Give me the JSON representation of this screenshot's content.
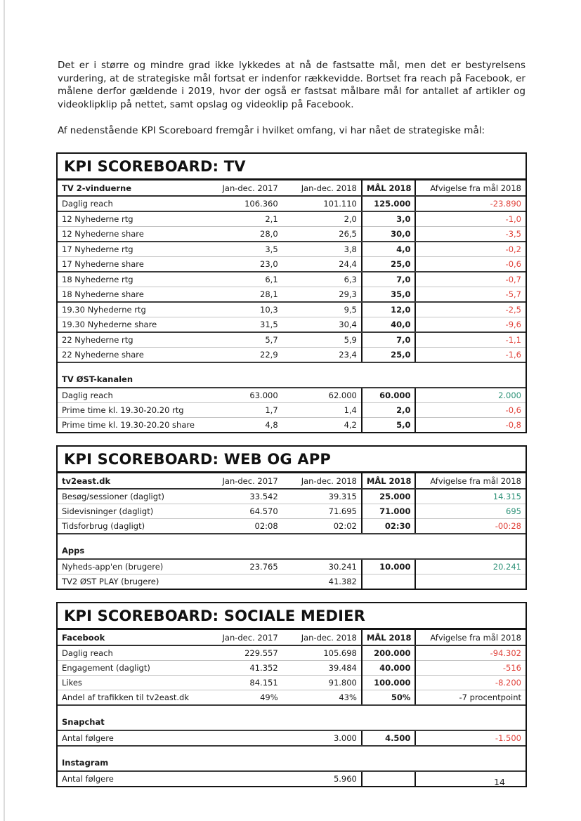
{
  "intro": {
    "paragraph1": "Det er i større og mindre grad ikke lykkedes at nå de fastsatte mål, men det er bestyrelsens vurdering, at de strategiske mål fortsat er indenfor rækkevidde. Bortset fra reach på Facebook, er målene derfor gældende i 2019, hvor der også er fastsat målbare mål for antallet af artikler og videoklipklip på nettet, samt opslag og videoklip på Facebook.",
    "paragraph2": "Af nedenstående KPI Scoreboard fremgår i hvilket omfang, vi har nået de strategiske mål:"
  },
  "columns": {
    "period1": "Jan-dec. 2017",
    "period2": "Jan-dec. 2018",
    "goal": "MÅL 2018",
    "deviation": "Afvigelse fra mål 2018"
  },
  "colors": {
    "negative": "#e0423a",
    "positive": "#2e9278",
    "text": "#1a1a1a",
    "border_dark": "#141414",
    "border_light": "#c3c3c3"
  },
  "tables": [
    {
      "title": "KPI SCOREBOARD: TV",
      "group_label": "TV 2-vinduerne",
      "rows": [
        {
          "type": "data",
          "label": "Daglig reach",
          "v1": "106.360",
          "v2": "101.110",
          "goal": "125.000",
          "dev": "-23.890",
          "dev_tone": "negative",
          "border": "dark"
        },
        {
          "type": "data",
          "label": "12 Nyhederne rtg",
          "v1": "2,1",
          "v2": "2,0",
          "goal": "3,0",
          "dev": "-1,0",
          "dev_tone": "negative",
          "border": "light"
        },
        {
          "type": "data",
          "label": "12 Nyhederne share",
          "v1": "28,0",
          "v2": "26,5",
          "goal": "30,0",
          "dev": "-3,5",
          "dev_tone": "negative",
          "border": "dark"
        },
        {
          "type": "data",
          "label": "17 Nyhederne rtg",
          "v1": "3,5",
          "v2": "3,8",
          "goal": "4,0",
          "dev": "-0,2",
          "dev_tone": "negative",
          "border": "light"
        },
        {
          "type": "data",
          "label": "17 Nyhederne share",
          "v1": "23,0",
          "v2": "24,4",
          "goal": "25,0",
          "dev": "-0,6",
          "dev_tone": "negative",
          "border": "dark"
        },
        {
          "type": "data",
          "label": "18 Nyhederne rtg",
          "v1": "6,1",
          "v2": "6,3",
          "goal": "7,0",
          "dev": "-0,7",
          "dev_tone": "negative",
          "border": "light"
        },
        {
          "type": "data",
          "label": "18 Nyhederne share",
          "v1": "28,1",
          "v2": "29,3",
          "goal": "35,0",
          "dev": "-5,7",
          "dev_tone": "negative",
          "border": "dark"
        },
        {
          "type": "data",
          "label": "19.30 Nyhederne rtg",
          "v1": "10,3",
          "v2": "9,5",
          "goal": "12,0",
          "dev": "-2,5",
          "dev_tone": "negative",
          "border": "light"
        },
        {
          "type": "data",
          "label": "19.30 Nyhederne share",
          "v1": "31,5",
          "v2": "30,4",
          "goal": "40,0",
          "dev": "-9,6",
          "dev_tone": "negative",
          "border": "dark"
        },
        {
          "type": "data",
          "label": "22 Nyhederne rtg",
          "v1": "5,7",
          "v2": "5,9",
          "goal": "7,0",
          "dev": "-1,1",
          "dev_tone": "negative",
          "border": "light"
        },
        {
          "type": "data",
          "label": "22 Nyhederne share",
          "v1": "22,9",
          "v2": "23,4",
          "goal": "25,0",
          "dev": "-1,6",
          "dev_tone": "negative",
          "border": "dark"
        },
        {
          "type": "spacer"
        },
        {
          "type": "subhead",
          "label": "TV ØST-kanalen"
        },
        {
          "type": "data",
          "label": "Daglig reach",
          "v1": "63.000",
          "v2": "62.000",
          "goal": "60.000",
          "dev": "2.000",
          "dev_tone": "positive",
          "border": "light"
        },
        {
          "type": "data",
          "label": "Prime time kl. 19.30-20.20 rtg",
          "v1": "1,7",
          "v2": "1,4",
          "goal": "2,0",
          "dev": "-0,6",
          "dev_tone": "negative",
          "border": "light"
        },
        {
          "type": "data",
          "label": "Prime time kl. 19.30-20.20 share",
          "v1": "4,8",
          "v2": "4,2",
          "goal": "5,0",
          "dev": "-0,8",
          "dev_tone": "negative",
          "border": "none"
        }
      ]
    },
    {
      "title": "KPI SCOREBOARD: WEB OG APP",
      "group_label": "tv2east.dk",
      "rows": [
        {
          "type": "data",
          "label": "Besøg/sessioner (dagligt)",
          "v1": "33.542",
          "v2": "39.315",
          "goal": "25.000",
          "dev": "14.315",
          "dev_tone": "positive",
          "border": "light"
        },
        {
          "type": "data",
          "label": "Sidevisninger (dagligt)",
          "v1": "64.570",
          "v2": "71.695",
          "goal": "71.000",
          "dev": "695",
          "dev_tone": "positive",
          "border": "light"
        },
        {
          "type": "data",
          "label": "Tidsforbrug (dagligt)",
          "v1": "02:08",
          "v2": "02:02",
          "goal": "02:30",
          "dev": "-00:28",
          "dev_tone": "negative",
          "border": "dark"
        },
        {
          "type": "spacer"
        },
        {
          "type": "subhead",
          "label": "Apps"
        },
        {
          "type": "data",
          "label": "Nyheds-app'en (brugere)",
          "v1": "23.765",
          "v2": "30.241",
          "goal": "10.000",
          "dev": "20.241",
          "dev_tone": "positive",
          "border": "light"
        },
        {
          "type": "data",
          "label": "TV2 ØST PLAY (brugere)",
          "v1": "",
          "v2": "41.382",
          "goal": "",
          "dev": "",
          "dev_tone": "plain",
          "border": "none"
        }
      ]
    },
    {
      "title": "KPI SCOREBOARD: SOCIALE MEDIER",
      "group_label": "Facebook",
      "rows": [
        {
          "type": "data",
          "label": "Daglig reach",
          "v1": "229.557",
          "v2": "105.698",
          "goal": "200.000",
          "dev": "-94.302",
          "dev_tone": "negative",
          "border": "light"
        },
        {
          "type": "data",
          "label": "Engagement (dagligt)",
          "v1": "41.352",
          "v2": "39.484",
          "goal": "40.000",
          "dev": "-516",
          "dev_tone": "negative",
          "border": "light"
        },
        {
          "type": "data",
          "label": "Likes",
          "v1": "84.151",
          "v2": "91.800",
          "goal": "100.000",
          "dev": "-8.200",
          "dev_tone": "negative",
          "border": "light"
        },
        {
          "type": "data",
          "label": "Andel af trafikken til tv2east.dk",
          "v1": "49%",
          "v2": "43%",
          "goal": "50%",
          "dev": "-7 procentpoint",
          "dev_tone": "plain",
          "border": "dark"
        },
        {
          "type": "spacer"
        },
        {
          "type": "subhead",
          "label": "Snapchat"
        },
        {
          "type": "data",
          "label": "Antal følgere",
          "v1": "",
          "v2": "3.000",
          "goal": "4.500",
          "dev": "-1.500",
          "dev_tone": "negative",
          "border": "dark"
        },
        {
          "type": "spacer"
        },
        {
          "type": "subhead",
          "label": "Instagram"
        },
        {
          "type": "data",
          "label": "Antal følgere",
          "v1": "",
          "v2": "5.960",
          "goal": "",
          "dev": "",
          "dev_tone": "plain",
          "border": "none"
        }
      ]
    }
  ],
  "footer": {
    "page_number": "14"
  }
}
